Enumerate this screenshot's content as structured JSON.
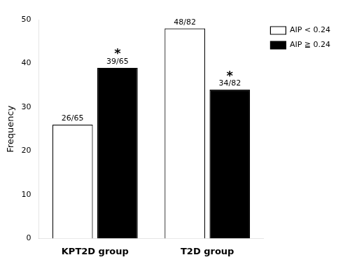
{
  "chart_data": {
    "type": "bar",
    "categories": [
      "KPT2D group",
      "T2D group"
    ],
    "series": [
      {
        "name": "AIP < 0.24",
        "color": "#ffffff",
        "values": [
          26,
          48
        ],
        "value_labels": [
          "26/65",
          "48/82"
        ]
      },
      {
        "name": "AIP ≧ 0.24",
        "color": "#000000",
        "values": [
          39,
          34
        ],
        "value_labels": [
          "39/65",
          "34/82"
        ]
      }
    ],
    "annotations": [
      {
        "text": "*",
        "series": "AIP ≧ 0.24",
        "category": "KPT2D group"
      },
      {
        "text": "*",
        "series": "AIP ≧ 0.24",
        "category": "T2D group"
      }
    ],
    "ylabel": "Frequency",
    "ylim": [
      0,
      50
    ],
    "yticks": [
      0,
      10,
      20,
      30,
      40,
      50
    ],
    "grid": false,
    "legend": "upper right",
    "data_labels": true
  }
}
